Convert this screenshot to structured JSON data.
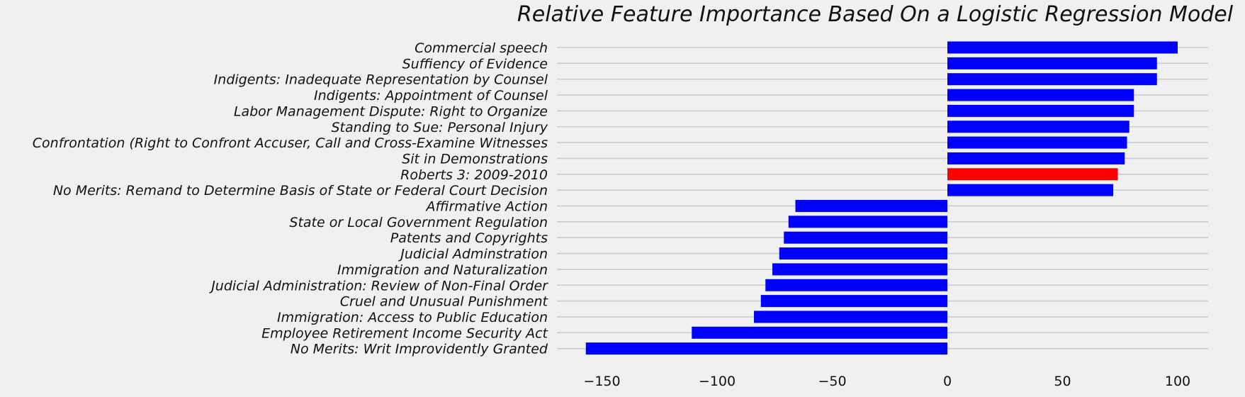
{
  "chart_data": {
    "type": "bar",
    "orientation": "horizontal",
    "title": "Relative Feature Importance Based On a Logistic Regression Model",
    "xlabel": "",
    "ylabel": "",
    "xlim": [
      -170,
      113
    ],
    "xticks": [
      -150,
      -100,
      -50,
      0,
      50,
      100
    ],
    "xtick_labels": [
      "−150",
      "−100",
      "−50",
      "0",
      "50",
      "100"
    ],
    "grid": "horizontal",
    "legend": "none",
    "default_color": "#0000ff",
    "highlight_color": "#ff0000",
    "categories": [
      "Commercial speech",
      "Suffiency of Evidence",
      "Indigents: Inadequate Representation by Counsel",
      "Indigents: Appointment of Counsel",
      "Labor Management Dispute: Right to Organize",
      "Standing to Sue: Personal Injury",
      "Confrontation (Right to Confront Accuser, Call and Cross-Examine Witnesses",
      "Sit in Demonstrations",
      "Roberts 3: 2009-2010",
      "No Merits: Remand to Determine Basis of State or Federal Court Decision",
      "Affirmative Action",
      "State or Local Government Regulation",
      "Patents and Copyrights",
      "Judicial Adminstration",
      "Immigration and Naturalization",
      "Judicial Administration: Review of Non-Final Order",
      "Cruel and Unusual Punishment",
      "Immigration: Access to Public Education",
      "Employee Retirement Income Security Act",
      "No Merits: Writ Improvidently Granted"
    ],
    "values": [
      100,
      91,
      91,
      81,
      81,
      79,
      78,
      77,
      74,
      72,
      -66,
      -69,
      -71,
      -73,
      -76,
      -79,
      -81,
      -84,
      -111,
      -157
    ],
    "colors": [
      "#0000ff",
      "#0000ff",
      "#0000ff",
      "#0000ff",
      "#0000ff",
      "#0000ff",
      "#0000ff",
      "#0000ff",
      "#ff0000",
      "#0000ff",
      "#0000ff",
      "#0000ff",
      "#0000ff",
      "#0000ff",
      "#0000ff",
      "#0000ff",
      "#0000ff",
      "#0000ff",
      "#0000ff",
      "#0000ff"
    ]
  }
}
